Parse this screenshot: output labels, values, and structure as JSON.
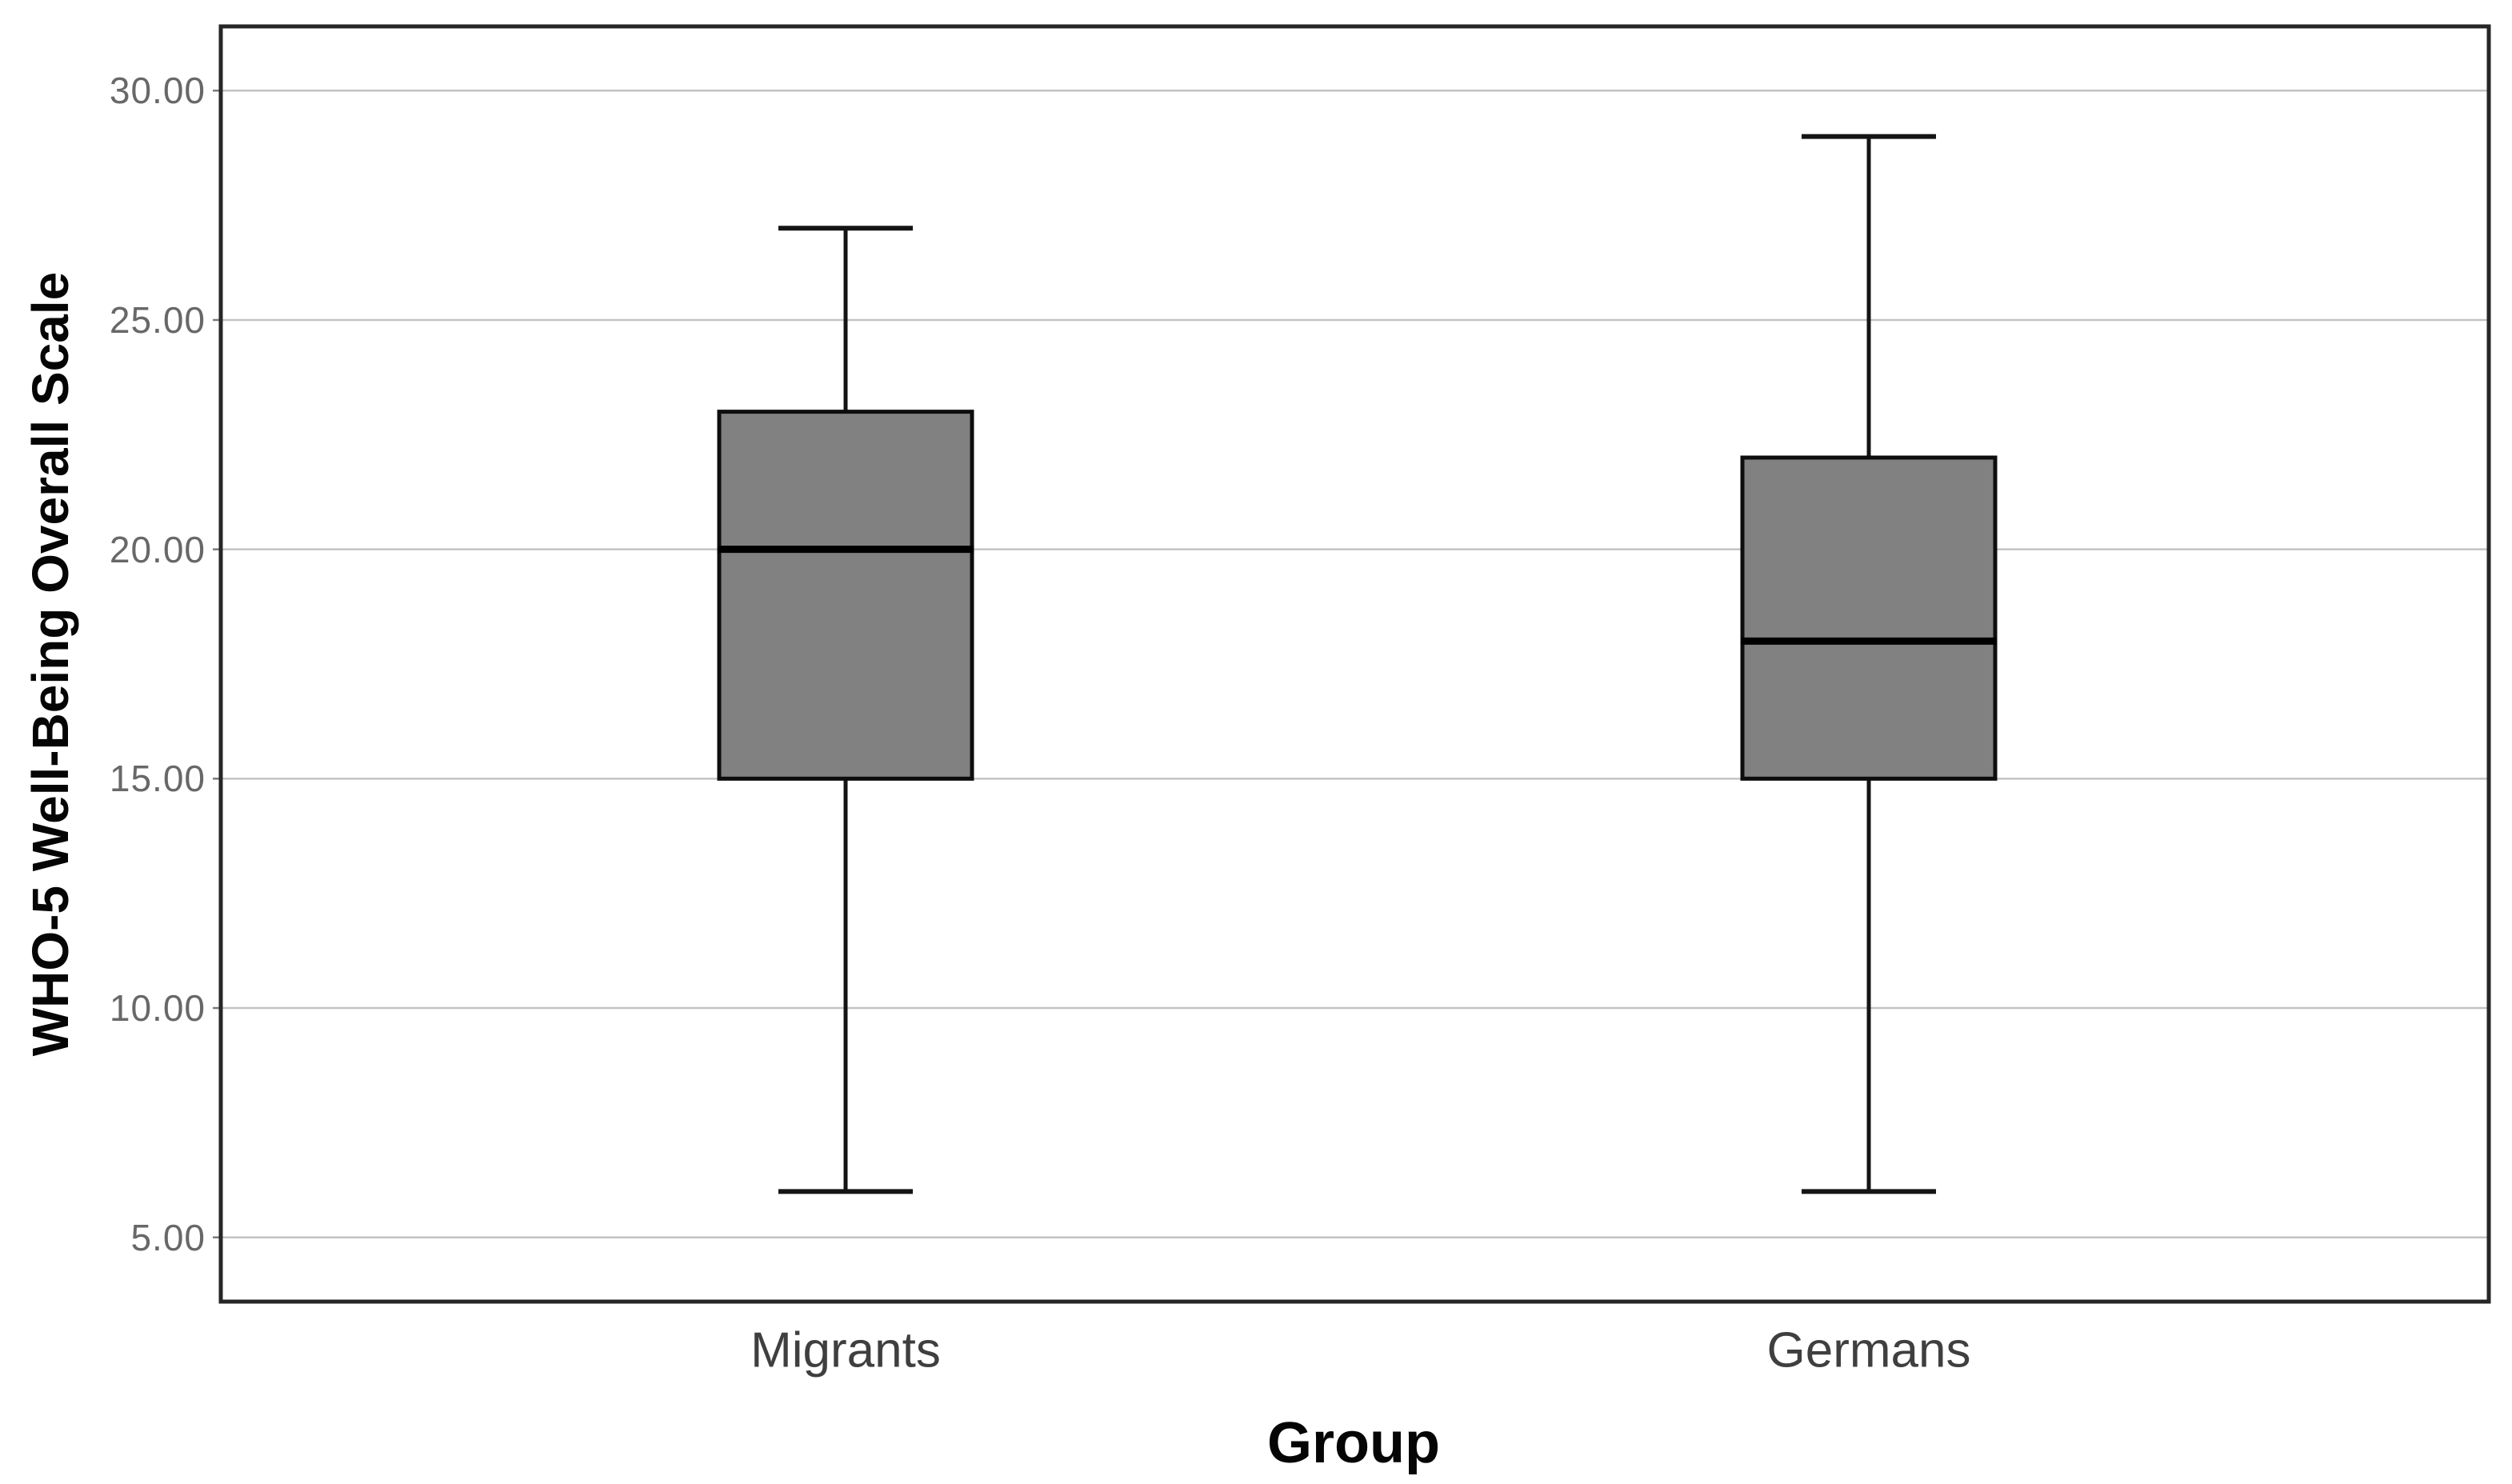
{
  "figure": {
    "background": "#ffffff"
  },
  "colors": {
    "box_fill": "#818181",
    "box_stroke": "#0d0d0d",
    "median": "#000000",
    "whisker": "#141414",
    "gridline": "#c3c3c3",
    "frame": "#262626",
    "tick_mark": "#7a7a7a",
    "ytick_label": "#686868",
    "category_label": "#3f3f3f",
    "axis_title": "#050505"
  },
  "chart_data": {
    "type": "boxplot",
    "title": "",
    "xlabel": "Group",
    "ylabel": "WHO-5 Well-Being Overall Scale",
    "categories": [
      "Migrants",
      "Germans"
    ],
    "series": [
      {
        "name": "Migrants",
        "whisker_low": 6.0,
        "q1": 15.0,
        "median": 20.0,
        "q3": 23.0,
        "whisker_high": 27.0,
        "outliers": []
      },
      {
        "name": "Germans",
        "whisker_low": 6.0,
        "q1": 15.0,
        "median": 18.0,
        "q3": 22.0,
        "whisker_high": 29.0,
        "outliers": []
      }
    ],
    "yticks": [
      30,
      25,
      20,
      15,
      10,
      5
    ],
    "ytick_labels": [
      "30.00",
      "25.00",
      "20.00",
      "15.00",
      "10.00",
      "5.00"
    ],
    "ylim": [
      3.6,
      31.4
    ],
    "grid": "horizontal",
    "legend": "none"
  }
}
